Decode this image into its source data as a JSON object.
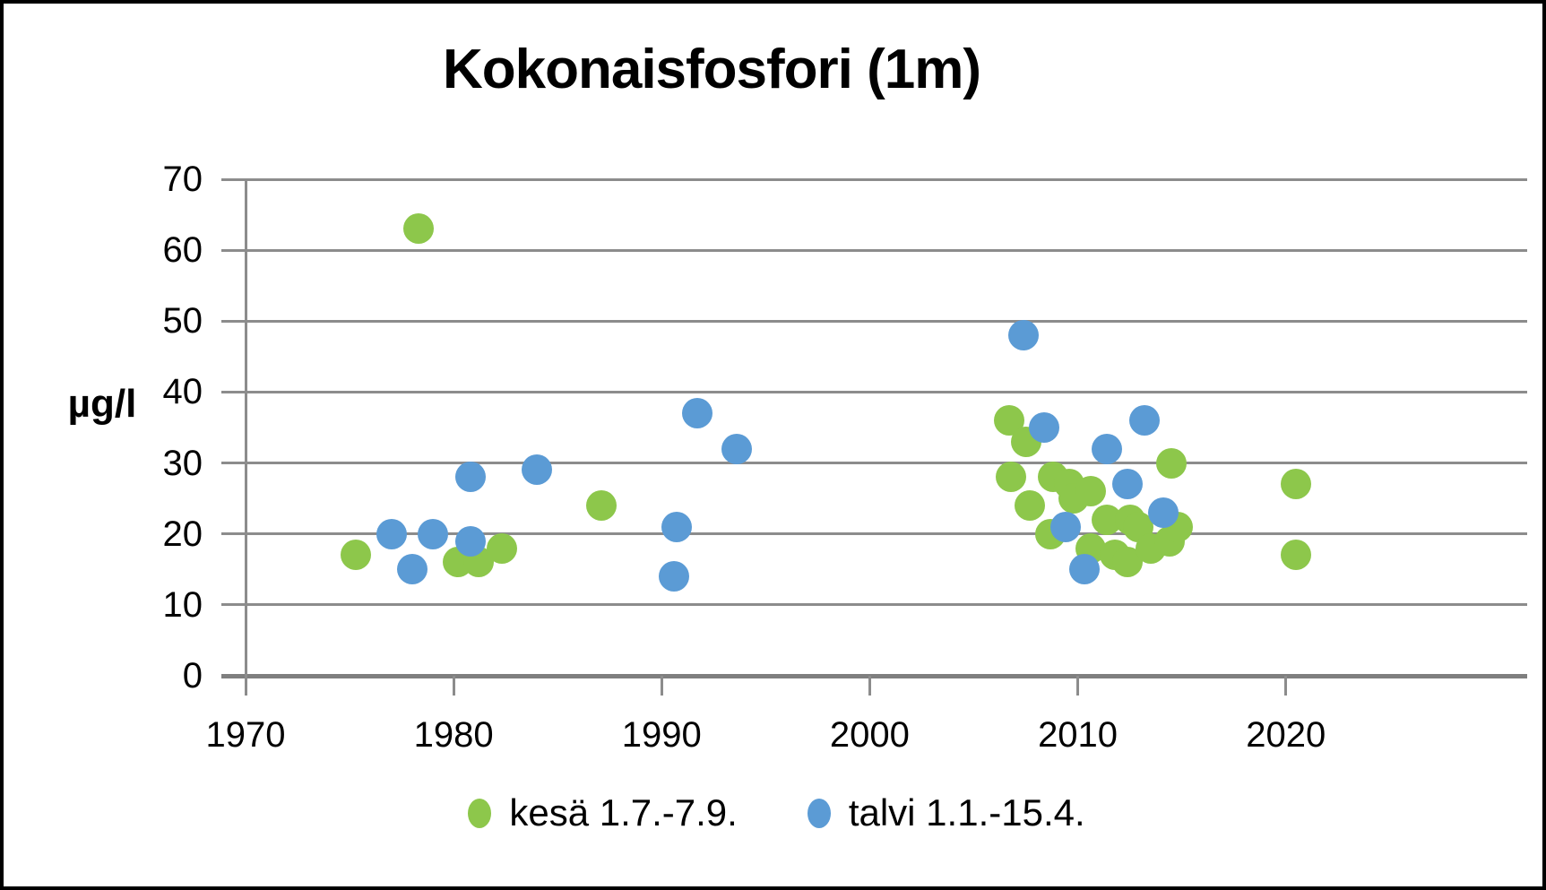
{
  "chart_data": {
    "type": "scatter",
    "title": "Kokonaisfosfori (1m)",
    "ylabel": "µg/l",
    "xlabel": "",
    "xlim": [
      1970,
      2031.6
    ],
    "ylim": [
      0,
      70
    ],
    "x_ticks": [
      1970,
      1980,
      1990,
      2000,
      2010,
      2020
    ],
    "y_ticks": [
      0,
      10,
      20,
      30,
      40,
      50,
      60,
      70
    ],
    "grid": "horizontal",
    "legend_position": "bottom",
    "series": [
      {
        "name": "kesä 1.7.-7.9.",
        "color": "#8dc74b",
        "points": [
          [
            1975.3,
            17
          ],
          [
            1978.3,
            63
          ],
          [
            1980.2,
            16
          ],
          [
            1981.2,
            16
          ],
          [
            1982.3,
            18
          ],
          [
            1987.1,
            24
          ],
          [
            2006.7,
            36
          ],
          [
            2006.8,
            28
          ],
          [
            2007.5,
            33
          ],
          [
            2007.7,
            24
          ],
          [
            2008.7,
            20
          ],
          [
            2008.8,
            28
          ],
          [
            2009.6,
            27
          ],
          [
            2009.8,
            25
          ],
          [
            2010.6,
            26
          ],
          [
            2010.6,
            18
          ],
          [
            2011.4,
            22
          ],
          [
            2011.8,
            17
          ],
          [
            2012.4,
            16
          ],
          [
            2012.5,
            22
          ],
          [
            2012.9,
            21
          ],
          [
            2013.5,
            18
          ],
          [
            2014.4,
            19
          ],
          [
            2014.5,
            30
          ],
          [
            2014.8,
            21
          ],
          [
            2020.5,
            27
          ],
          [
            2020.5,
            17
          ]
        ]
      },
      {
        "name": "talvi 1.1.-15.4.",
        "color": "#5b9bd5",
        "points": [
          [
            1977.0,
            20
          ],
          [
            1978.0,
            15
          ],
          [
            1979.0,
            20
          ],
          [
            1980.8,
            28
          ],
          [
            1980.8,
            19
          ],
          [
            1984.0,
            29
          ],
          [
            1990.6,
            14
          ],
          [
            1990.7,
            21
          ],
          [
            1991.7,
            37
          ],
          [
            1993.6,
            32
          ],
          [
            2007.4,
            48
          ],
          [
            2008.4,
            35
          ],
          [
            2009.4,
            21
          ],
          [
            2010.3,
            15
          ],
          [
            2011.4,
            32
          ],
          [
            2012.4,
            27
          ],
          [
            2013.2,
            36
          ],
          [
            2014.1,
            23
          ]
        ]
      }
    ],
    "colors": {
      "series_kesa": "#8dc74b",
      "series_talvi": "#5b9bd5",
      "gridline": "#8c8c8c",
      "axis": "#7f7f7f",
      "text": "#000000",
      "border": "#000000"
    }
  }
}
